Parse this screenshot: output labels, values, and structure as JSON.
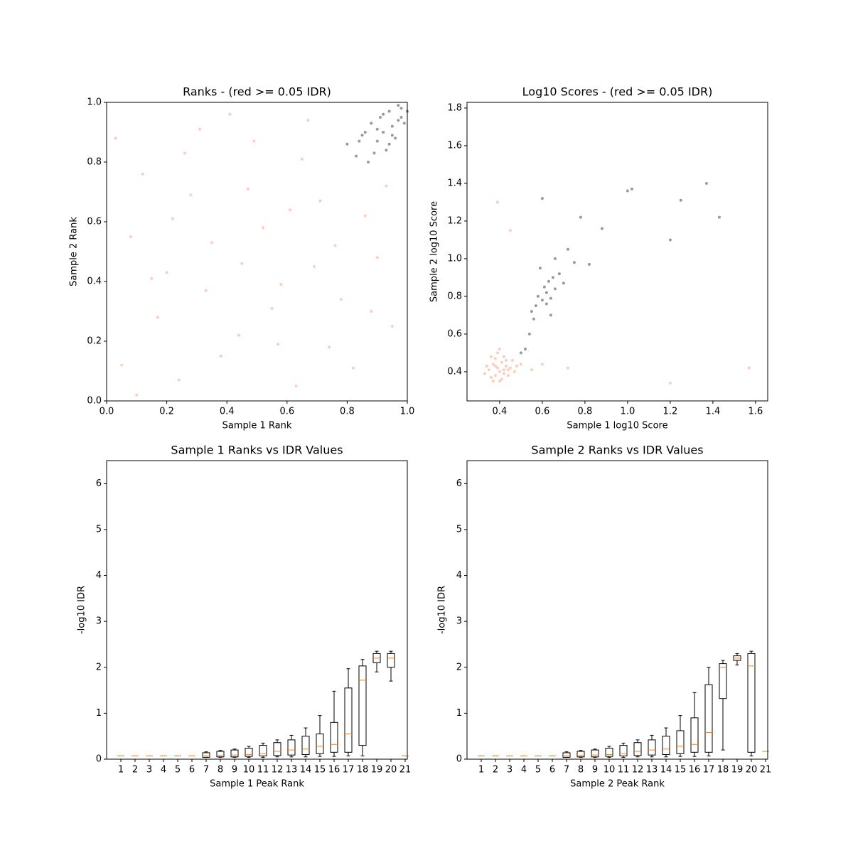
{
  "chart_data": [
    {
      "type": "scatter",
      "title": "Ranks - (red >= 0.05 IDR)",
      "xlabel": "Sample 1 Rank",
      "ylabel": "Sample 2 Rank",
      "xlim": [
        0,
        1
      ],
      "ylim": [
        0,
        1
      ],
      "xticks": [
        {
          "value": 0,
          "label": "0.0"
        },
        {
          "value": 0.2,
          "label": "0.2"
        },
        {
          "value": 0.4,
          "label": "0.4"
        },
        {
          "value": 0.6,
          "label": "0.6"
        },
        {
          "value": 0.8,
          "label": "0.8"
        },
        {
          "value": 1,
          "label": "1.0"
        }
      ],
      "yticks": [
        {
          "value": 0,
          "label": "0.0"
        },
        {
          "value": 0.2,
          "label": "0.2"
        },
        {
          "value": 0.4,
          "label": "0.4"
        },
        {
          "value": 0.6,
          "label": "0.6"
        },
        {
          "value": 0.8,
          "label": "0.8"
        },
        {
          "value": 1,
          "label": "1.0"
        }
      ],
      "series": [
        {
          "color": "#fc8d62",
          "x": [
            0.05,
            0.12,
            0.2,
            0.31,
            0.44,
            0.52,
            0.63,
            0.71,
            0.78,
            0.9,
            0.08,
            0.17,
            0.26,
            0.38,
            0.47,
            0.58,
            0.67,
            0.74,
            0.86,
            0.95,
            0.03,
            0.15,
            0.24,
            0.35,
            0.41,
            0.55,
            0.61,
            0.69,
            0.82,
            0.93,
            0.1,
            0.22,
            0.33,
            0.49,
            0.57,
            0.65,
            0.76,
            0.88,
            0.28,
            0.45
          ],
          "values": [
            0.12,
            0.76,
            0.43,
            0.91,
            0.22,
            0.58,
            0.05,
            0.67,
            0.34,
            0.48,
            0.55,
            0.28,
            0.83,
            0.15,
            0.71,
            0.39,
            0.94,
            0.18,
            0.62,
            0.25,
            0.88,
            0.41,
            0.07,
            0.53,
            0.96,
            0.31,
            0.64,
            0.45,
            0.11,
            0.72,
            0.02,
            0.61,
            0.37,
            0.87,
            0.19,
            0.81,
            0.52,
            0.3,
            0.69,
            0.46
          ]
        },
        {
          "color": "#000000",
          "x": [
            0.8,
            0.83,
            0.85,
            0.87,
            0.88,
            0.9,
            0.91,
            0.92,
            0.93,
            0.94,
            0.95,
            0.96,
            0.97,
            0.98,
            0.99,
            0.86,
            0.89,
            0.92,
            0.95,
            0.97,
            0.84,
            0.9,
            0.94,
            0.98,
            1.0
          ],
          "values": [
            0.86,
            0.82,
            0.89,
            0.8,
            0.93,
            0.87,
            0.95,
            0.9,
            0.84,
            0.97,
            0.92,
            0.88,
            0.99,
            0.95,
            0.93,
            0.9,
            0.83,
            0.96,
            0.89,
            0.94,
            0.87,
            0.91,
            0.86,
            0.98,
            0.97
          ]
        }
      ]
    },
    {
      "type": "scatter",
      "title": "Log10 Scores - (red >= 0.05 IDR)",
      "xlabel": "Sample 1 log10 Score",
      "ylabel": "Sample 2 log10 Score",
      "xlim": [
        0.247,
        1.657
      ],
      "ylim": [
        0.245,
        1.83
      ],
      "xticks": [
        0.4,
        0.6,
        0.8,
        {
          "value": 1,
          "label": "1.0"
        },
        1.2,
        1.4,
        1.6
      ],
      "yticks": [
        0.4,
        0.6,
        0.8,
        {
          "value": 1,
          "label": "1.0"
        },
        1.2,
        1.4,
        1.6,
        1.8
      ],
      "series": [
        {
          "color": "#fc8d62",
          "x": [
            0.35,
            0.37,
            0.38,
            0.39,
            0.4,
            0.41,
            0.42,
            0.43,
            0.44,
            0.36,
            0.38,
            0.4,
            0.42,
            0.45,
            0.47,
            0.34,
            0.39,
            0.41,
            0.43,
            0.5,
            0.55,
            0.33,
            0.37,
            0.46,
            0.4,
            0.44,
            0.38,
            0.36,
            0.42,
            0.48,
            0.6,
            0.72,
            1.2,
            1.57,
            0.45,
            0.39
          ],
          "values": [
            0.41,
            0.44,
            0.38,
            0.42,
            0.4,
            0.45,
            0.39,
            0.43,
            0.41,
            0.37,
            0.47,
            0.35,
            0.48,
            0.42,
            0.4,
            0.43,
            0.5,
            0.36,
            0.46,
            0.44,
            0.41,
            0.39,
            0.35,
            0.46,
            0.52,
            0.38,
            0.43,
            0.48,
            0.41,
            0.43,
            0.44,
            0.42,
            0.34,
            0.42,
            1.15,
            1.3
          ]
        },
        {
          "color": "#000000",
          "x": [
            0.5,
            0.52,
            0.54,
            0.55,
            0.57,
            0.58,
            0.6,
            0.61,
            0.62,
            0.63,
            0.64,
            0.65,
            0.66,
            0.68,
            0.7,
            0.56,
            0.59,
            0.62,
            0.66,
            0.72,
            0.75,
            0.78,
            0.82,
            0.88,
            1.0,
            1.02,
            1.2,
            1.25,
            1.37,
            1.43,
            0.6,
            0.64
          ],
          "values": [
            0.5,
            0.52,
            0.6,
            0.72,
            0.75,
            0.8,
            0.78,
            0.85,
            0.82,
            0.88,
            0.79,
            0.9,
            0.84,
            0.92,
            0.87,
            0.68,
            0.95,
            0.76,
            1.0,
            1.05,
            0.98,
            1.22,
            0.97,
            1.16,
            1.36,
            1.37,
            1.1,
            1.31,
            1.4,
            1.22,
            1.32,
            0.7
          ]
        }
      ]
    },
    {
      "type": "box",
      "title": "Sample 1 Ranks vs IDR Values",
      "xlabel": "Sample 1 Peak Rank",
      "ylabel": "-log10 IDR",
      "xlim": [
        0,
        21.15
      ],
      "ylim": [
        0,
        6.5
      ],
      "xticks": [
        1,
        2,
        3,
        4,
        5,
        6,
        7,
        8,
        9,
        10,
        11,
        12,
        13,
        14,
        15,
        16,
        17,
        18,
        19,
        20,
        21
      ],
      "yticks": [
        0,
        1,
        2,
        3,
        4,
        5,
        6
      ],
      "color": "#000000",
      "median_color": "#ff7f0e",
      "x": [
        1,
        2,
        3,
        4,
        5,
        6,
        7,
        8,
        9,
        10,
        11,
        12,
        13,
        14,
        15,
        16,
        17,
        18,
        19,
        20,
        21
      ],
      "whislo": [
        0.07,
        0.07,
        0.07,
        0.07,
        0.07,
        0.07,
        0.04,
        0.04,
        0.04,
        0.04,
        0.04,
        0.05,
        0.05,
        0.05,
        0.06,
        0.06,
        0.07,
        0.07,
        1.9,
        1.7,
        0.07
      ],
      "q1": [
        0.07,
        0.07,
        0.07,
        0.07,
        0.07,
        0.07,
        0.04,
        0.05,
        0.05,
        0.06,
        0.07,
        0.08,
        0.09,
        0.1,
        0.12,
        0.15,
        0.15,
        0.3,
        2.1,
        2.0,
        0.07
      ],
      "med": [
        0.07,
        0.07,
        0.07,
        0.07,
        0.07,
        0.07,
        0.07,
        0.08,
        0.09,
        0.1,
        0.12,
        0.17,
        0.2,
        0.22,
        0.28,
        0.32,
        0.55,
        1.72,
        2.2,
        2.2,
        0.07
      ],
      "q3": [
        0.07,
        0.07,
        0.07,
        0.07,
        0.07,
        0.07,
        0.14,
        0.17,
        0.2,
        0.24,
        0.3,
        0.36,
        0.42,
        0.5,
        0.55,
        0.8,
        1.55,
        2.03,
        2.3,
        2.3,
        0.07
      ],
      "whishi": [
        0.07,
        0.07,
        0.07,
        0.07,
        0.07,
        0.07,
        0.16,
        0.19,
        0.22,
        0.28,
        0.35,
        0.42,
        0.52,
        0.68,
        0.95,
        1.48,
        1.97,
        2.17,
        2.35,
        2.35,
        0.07
      ]
    },
    {
      "type": "box",
      "title": "Sample 2 Ranks vs IDR Values",
      "xlabel": "Sample 2 Peak Rank",
      "ylabel": "-log10 IDR",
      "xlim": [
        0,
        21.15
      ],
      "ylim": [
        0,
        6.5
      ],
      "xticks": [
        1,
        2,
        3,
        4,
        5,
        6,
        7,
        8,
        9,
        10,
        11,
        12,
        13,
        14,
        15,
        16,
        17,
        18,
        19,
        20,
        21
      ],
      "yticks": [
        0,
        1,
        2,
        3,
        4,
        5,
        6
      ],
      "color": "#000000",
      "median_color": "#ff7f0e",
      "x": [
        1,
        2,
        3,
        4,
        5,
        6,
        7,
        8,
        9,
        10,
        11,
        12,
        13,
        14,
        15,
        16,
        17,
        18,
        19,
        20,
        21
      ],
      "whislo": [
        0.07,
        0.07,
        0.07,
        0.07,
        0.07,
        0.07,
        0.04,
        0.04,
        0.04,
        0.04,
        0.04,
        0.05,
        0.05,
        0.05,
        0.06,
        0.06,
        0.07,
        0.2,
        2.05,
        0.07,
        0.17
      ],
      "q1": [
        0.07,
        0.07,
        0.07,
        0.07,
        0.07,
        0.07,
        0.04,
        0.05,
        0.05,
        0.06,
        0.07,
        0.08,
        0.09,
        0.1,
        0.12,
        0.15,
        0.15,
        1.32,
        2.15,
        0.15,
        0.17
      ],
      "med": [
        0.07,
        0.07,
        0.07,
        0.07,
        0.07,
        0.07,
        0.07,
        0.08,
        0.09,
        0.1,
        0.12,
        0.17,
        0.2,
        0.22,
        0.28,
        0.32,
        0.58,
        2.0,
        2.2,
        2.03,
        0.17
      ],
      "q3": [
        0.07,
        0.07,
        0.07,
        0.07,
        0.07,
        0.07,
        0.14,
        0.17,
        0.2,
        0.24,
        0.3,
        0.36,
        0.42,
        0.5,
        0.62,
        0.9,
        1.62,
        2.08,
        2.25,
        2.3,
        0.17
      ],
      "whishi": [
        0.07,
        0.07,
        0.07,
        0.07,
        0.07,
        0.07,
        0.16,
        0.19,
        0.22,
        0.28,
        0.35,
        0.42,
        0.52,
        0.68,
        0.95,
        1.45,
        2.0,
        2.15,
        2.3,
        2.35,
        0.17
      ]
    }
  ]
}
